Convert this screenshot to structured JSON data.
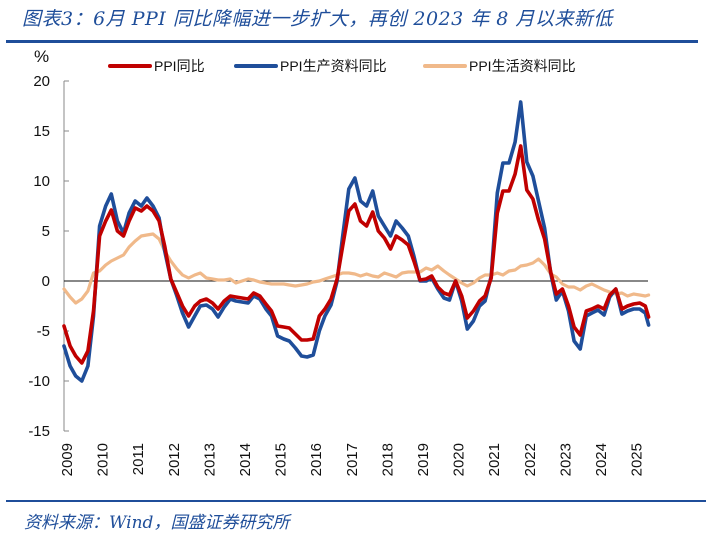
{
  "header": {
    "title": "图表3：6月 PPI 同比降幅进一步扩大，再创 2023 年 8 月以来新低"
  },
  "footer": {
    "source": "资料来源：Wind，国盛证券研究所"
  },
  "chart_data": {
    "type": "line",
    "title": "图表3：6月 PPI 同比降幅进一步扩大，再创 2023 年 8 月以来新低",
    "xlabel": "",
    "ylabel": "%",
    "ylim": [
      -15,
      20
    ],
    "yticks": [
      -15,
      -10,
      -5,
      0,
      5,
      10,
      15,
      20
    ],
    "xlim": [
      2009,
      2025.5
    ],
    "xticks": [
      "2009",
      "2010",
      "2011",
      "2012",
      "2013",
      "2014",
      "2015",
      "2016",
      "2017",
      "2018",
      "2019",
      "2020",
      "2021",
      "2022",
      "2023",
      "2024",
      "2025"
    ],
    "zero_line": true,
    "grid": false,
    "legend_position": "top",
    "x": [
      2009.0,
      2009.17,
      2009.33,
      2009.5,
      2009.67,
      2009.83,
      2010.0,
      2010.17,
      2010.33,
      2010.5,
      2010.67,
      2010.83,
      2011.0,
      2011.17,
      2011.33,
      2011.5,
      2011.67,
      2011.83,
      2012.0,
      2012.17,
      2012.33,
      2012.5,
      2012.67,
      2012.83,
      2013.0,
      2013.17,
      2013.33,
      2013.5,
      2013.67,
      2013.83,
      2014.0,
      2014.17,
      2014.33,
      2014.5,
      2014.67,
      2014.83,
      2015.0,
      2015.17,
      2015.33,
      2015.5,
      2015.67,
      2015.83,
      2016.0,
      2016.17,
      2016.33,
      2016.5,
      2016.67,
      2016.83,
      2017.0,
      2017.17,
      2017.33,
      2017.5,
      2017.67,
      2017.83,
      2018.0,
      2018.17,
      2018.33,
      2018.5,
      2018.67,
      2018.83,
      2019.0,
      2019.17,
      2019.33,
      2019.5,
      2019.67,
      2019.83,
      2020.0,
      2020.17,
      2020.33,
      2020.5,
      2020.67,
      2020.83,
      2021.0,
      2021.17,
      2021.33,
      2021.5,
      2021.67,
      2021.83,
      2022.0,
      2022.17,
      2022.33,
      2022.5,
      2022.67,
      2022.83,
      2023.0,
      2023.17,
      2023.33,
      2023.5,
      2023.67,
      2023.83,
      2024.0,
      2024.17,
      2024.33,
      2024.5,
      2024.67,
      2024.83,
      2025.0,
      2025.17,
      2025.33,
      2025.42
    ],
    "series": [
      {
        "name": "PPI同比",
        "color": "#c00000",
        "values": [
          -4.5,
          -6.5,
          -7.5,
          -8.2,
          -7.0,
          -3.0,
          4.5,
          6.0,
          7.1,
          5.0,
          4.5,
          6.0,
          7.3,
          7.0,
          7.5,
          7.0,
          6.0,
          3.5,
          0.2,
          -1.2,
          -2.5,
          -3.5,
          -2.5,
          -2.0,
          -1.8,
          -2.2,
          -2.8,
          -2.0,
          -1.5,
          -1.6,
          -1.7,
          -1.8,
          -1.2,
          -1.5,
          -2.3,
          -3.0,
          -4.5,
          -4.6,
          -4.7,
          -5.3,
          -5.9,
          -5.9,
          -5.8,
          -3.5,
          -2.8,
          -1.8,
          0.2,
          3.5,
          7.0,
          7.7,
          6.0,
          5.5,
          6.9,
          5.0,
          4.3,
          3.2,
          4.5,
          4.1,
          3.6,
          2.0,
          0.1,
          0.2,
          0.5,
          -0.6,
          -1.2,
          -1.4,
          0.0,
          -1.5,
          -3.7,
          -3.0,
          -2.0,
          -1.5,
          0.3,
          6.8,
          9.0,
          9.0,
          10.7,
          13.5,
          9.1,
          8.2,
          6.1,
          4.2,
          0.9,
          -1.3,
          -0.8,
          -2.5,
          -4.6,
          -5.4,
          -3.0,
          -2.8,
          -2.5,
          -2.8,
          -1.4,
          -0.8,
          -2.8,
          -2.5,
          -2.3,
          -2.2,
          -2.5,
          -3.6
        ]
      },
      {
        "name": "PPI生产资料同比",
        "color": "#1f4e9a",
        "values": [
          -6.5,
          -8.5,
          -9.5,
          -10.0,
          -8.5,
          -3.5,
          5.5,
          7.5,
          8.7,
          6.0,
          4.8,
          6.8,
          8.0,
          7.5,
          8.3,
          7.5,
          6.3,
          3.0,
          0.2,
          -1.5,
          -3.2,
          -4.6,
          -3.5,
          -2.5,
          -2.4,
          -2.8,
          -3.6,
          -2.6,
          -1.8,
          -2.0,
          -2.1,
          -2.2,
          -1.5,
          -1.8,
          -2.8,
          -3.5,
          -5.5,
          -5.8,
          -6.0,
          -6.7,
          -7.5,
          -7.6,
          -7.4,
          -5.0,
          -3.5,
          -2.4,
          0.0,
          4.5,
          9.2,
          10.3,
          8.0,
          7.5,
          9.0,
          6.5,
          5.5,
          4.5,
          6.0,
          5.3,
          4.5,
          2.5,
          0.0,
          0.0,
          0.3,
          -0.8,
          -1.7,
          -1.9,
          0.0,
          -2.0,
          -4.8,
          -4.0,
          -2.5,
          -2.0,
          0.5,
          8.8,
          11.8,
          11.8,
          13.9,
          17.9,
          11.9,
          10.5,
          8.0,
          5.3,
          0.8,
          -1.9,
          -1.0,
          -3.0,
          -6.0,
          -6.8,
          -3.5,
          -3.2,
          -2.9,
          -3.4,
          -1.6,
          -0.8,
          -3.3,
          -3.0,
          -2.8,
          -2.8,
          -3.2,
          -4.4
        ]
      },
      {
        "name": "PPI生活资料同比",
        "color": "#f0b98a",
        "values": [
          -0.8,
          -1.6,
          -2.2,
          -1.8,
          -1.0,
          0.8,
          1.0,
          1.6,
          2.0,
          2.3,
          2.6,
          3.4,
          4.0,
          4.5,
          4.6,
          4.7,
          4.2,
          3.0,
          2.0,
          1.2,
          0.6,
          0.3,
          0.6,
          0.8,
          0.3,
          0.2,
          0.1,
          0.1,
          0.2,
          -0.2,
          0.0,
          0.2,
          0.1,
          -0.1,
          -0.2,
          -0.3,
          -0.3,
          -0.3,
          -0.4,
          -0.5,
          -0.4,
          -0.3,
          -0.1,
          0.0,
          0.2,
          0.4,
          0.6,
          0.8,
          0.8,
          0.7,
          0.5,
          0.7,
          0.5,
          0.4,
          0.8,
          0.6,
          0.4,
          0.8,
          0.9,
          0.9,
          0.9,
          1.3,
          1.1,
          1.5,
          1.0,
          0.6,
          0.2,
          -0.2,
          -0.5,
          -0.2,
          0.3,
          0.6,
          0.6,
          0.8,
          0.6,
          1.0,
          1.1,
          1.5,
          1.6,
          1.8,
          2.2,
          1.6,
          0.7,
          0.4,
          -0.3,
          -0.6,
          -0.6,
          -0.9,
          -0.5,
          -0.3,
          -0.6,
          -0.9,
          -1.1,
          -1.3,
          -1.2,
          -1.5,
          -1.3,
          -1.4,
          -1.5,
          -1.4
        ]
      }
    ]
  }
}
